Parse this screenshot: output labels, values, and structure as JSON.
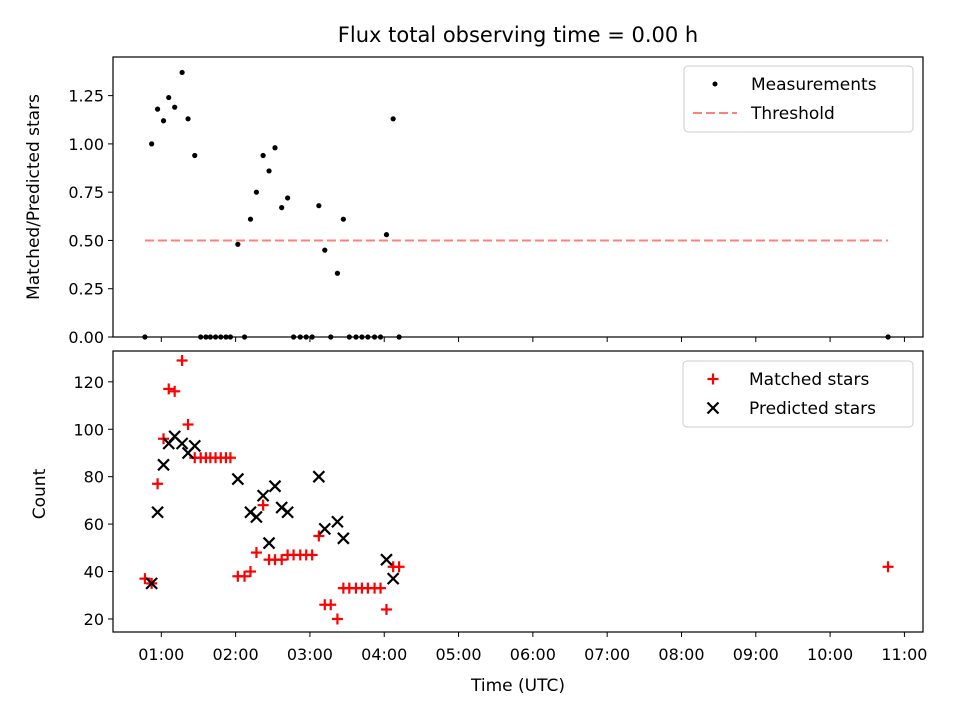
{
  "title": "Flux total observing time = 0.00 h",
  "xlabel": "Time (UTC)",
  "x_tick_labels": [
    "01:00",
    "02:00",
    "03:00",
    "04:00",
    "05:00",
    "06:00",
    "07:00",
    "08:00",
    "09:00",
    "10:00",
    "11:00"
  ],
  "colors": {
    "measurements": "#000000",
    "threshold": "#ff7f7f",
    "matched": "#ff0000",
    "predicted": "#000000"
  },
  "chart_data": [
    {
      "type": "scatter",
      "ylabel": "Matched/Predicted stars",
      "xlim": [
        0.35,
        11.25
      ],
      "ylim": [
        0,
        1.45
      ],
      "y_ticks": [
        0,
        0.25,
        0.5,
        0.75,
        1.0,
        1.25
      ],
      "y_tick_labels": [
        "0.00",
        "0.25",
        "0.50",
        "0.75",
        "1.00",
        "1.25"
      ],
      "legend": {
        "placement": "top-right",
        "measurements_label": "Measurements",
        "threshold_label": "Threshold"
      },
      "threshold": {
        "value": 0.5,
        "x_start": 0.78,
        "x_end": 10.78
      },
      "measurements": {
        "x": [
          0.78,
          0.87,
          0.95,
          1.03,
          1.1,
          1.18,
          1.28,
          1.36,
          1.45,
          1.53,
          1.6,
          1.66,
          1.73,
          1.8,
          1.87,
          1.93,
          2.03,
          2.12,
          2.2,
          2.28,
          2.37,
          2.45,
          2.53,
          2.62,
          2.7,
          2.78,
          2.87,
          2.95,
          3.03,
          3.12,
          3.2,
          3.28,
          3.37,
          3.45,
          3.53,
          3.62,
          3.7,
          3.78,
          3.87,
          3.95,
          4.03,
          4.12,
          4.2,
          10.78
        ],
        "y": [
          0,
          1.0,
          1.18,
          1.12,
          1.24,
          1.19,
          1.37,
          1.13,
          0.94,
          0,
          0,
          0,
          0,
          0,
          0,
          0,
          0.48,
          0,
          0.61,
          0.75,
          0.94,
          0.86,
          0.98,
          0.67,
          0.72,
          0,
          0,
          0,
          0,
          0.68,
          0.45,
          0,
          0.33,
          0.61,
          0,
          0,
          0,
          0,
          0,
          0,
          0.53,
          1.13,
          0,
          0
        ]
      }
    },
    {
      "type": "scatter",
      "ylabel": "Count",
      "xlim": [
        0.35,
        11.25
      ],
      "ylim": [
        14.5,
        133
      ],
      "y_ticks": [
        20,
        40,
        60,
        80,
        100,
        120
      ],
      "y_tick_labels": [
        "20",
        "40",
        "60",
        "80",
        "100",
        "120"
      ],
      "legend": {
        "placement": "top-right",
        "matched_label": "Matched stars",
        "predicted_label": "Predicted stars"
      },
      "matched": {
        "x": [
          0.78,
          0.87,
          0.95,
          1.03,
          1.1,
          1.18,
          1.28,
          1.36,
          1.45,
          1.53,
          1.6,
          1.66,
          1.73,
          1.8,
          1.87,
          1.93,
          2.03,
          2.12,
          2.2,
          2.28,
          2.37,
          2.45,
          2.53,
          2.62,
          2.7,
          2.78,
          2.87,
          2.95,
          3.03,
          3.12,
          3.2,
          3.28,
          3.37,
          3.45,
          3.53,
          3.62,
          3.7,
          3.78,
          3.87,
          3.95,
          4.03,
          4.12,
          4.2,
          10.78
        ],
        "y": [
          37,
          35,
          77,
          96,
          117,
          116,
          129,
          102,
          88,
          88,
          88,
          88,
          88,
          88,
          88,
          88,
          38,
          38,
          40,
          48,
          68,
          45,
          45,
          45,
          47,
          47,
          47,
          47,
          47,
          55,
          26,
          26,
          20,
          33,
          33,
          33,
          33,
          33,
          33,
          33,
          24,
          42,
          42,
          42
        ]
      },
      "predicted": {
        "x": [
          0.87,
          0.95,
          1.03,
          1.1,
          1.18,
          1.28,
          1.36,
          1.45,
          2.03,
          2.2,
          2.28,
          2.37,
          2.45,
          2.53,
          2.62,
          2.7,
          3.12,
          3.2,
          3.37,
          3.45,
          4.03,
          4.12
        ],
        "y": [
          35,
          65,
          85,
          94,
          97,
          94,
          90,
          93,
          79,
          65,
          63,
          72,
          52,
          76,
          67,
          65,
          80,
          58,
          61,
          54,
          45,
          37
        ]
      }
    }
  ]
}
